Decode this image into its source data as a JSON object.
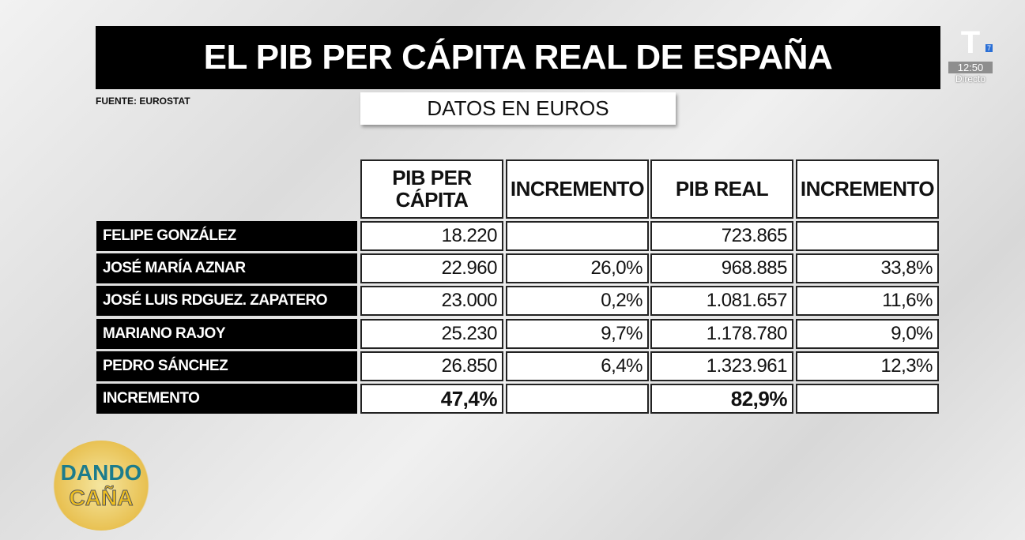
{
  "header": {
    "title": "EL PIB PER CÁPITA REAL DE ESPAÑA",
    "source": "FUENTE: EUROSTAT",
    "subtitle": "DATOS EN EUROS"
  },
  "table": {
    "columns": [
      "PIB PER CÁPITA",
      "INCREMENTO",
      "PIB REAL",
      "INCREMENTO"
    ],
    "rows": [
      [
        "FELIPE GONZÁLEZ",
        "18.220",
        null,
        "723.865",
        null
      ],
      [
        "JOSÉ MARÍA AZNAR",
        "22.960",
        "26,0%",
        "968.885",
        "33,8%"
      ],
      [
        "JOSÉ LUIS RDGUEZ. ZAPATERO",
        "23.000",
        "0,2%",
        "1.081.657",
        "11,6%"
      ],
      [
        "MARIANO RAJOY",
        "25.230",
        "9,7%",
        "1.178.780",
        "9,0%"
      ],
      [
        "PEDRO SÁNCHEZ",
        "26.850",
        "6,4%",
        "1.323.961",
        "12,3%"
      ],
      [
        "INCREMENTO",
        "47,4%",
        null,
        "82,9%",
        null
      ]
    ]
  },
  "channel": {
    "logo": "T",
    "number": "7",
    "time": "12:50",
    "status": "Directo"
  },
  "show": {
    "line1": "DANDO",
    "line2": "CAÑA"
  }
}
